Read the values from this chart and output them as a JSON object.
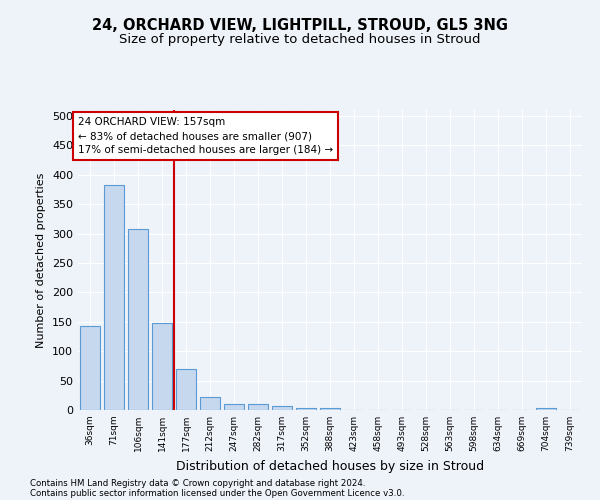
{
  "title1": "24, ORCHARD VIEW, LIGHTPILL, STROUD, GL5 3NG",
  "title2": "Size of property relative to detached houses in Stroud",
  "xlabel": "Distribution of detached houses by size in Stroud",
  "ylabel": "Number of detached properties",
  "categories": [
    "36sqm",
    "71sqm",
    "106sqm",
    "141sqm",
    "177sqm",
    "212sqm",
    "247sqm",
    "282sqm",
    "317sqm",
    "352sqm",
    "388sqm",
    "423sqm",
    "458sqm",
    "493sqm",
    "528sqm",
    "563sqm",
    "598sqm",
    "634sqm",
    "669sqm",
    "704sqm",
    "739sqm"
  ],
  "values": [
    143,
    383,
    307,
    148,
    70,
    22,
    10,
    10,
    7,
    4,
    3,
    0,
    0,
    0,
    0,
    0,
    0,
    0,
    0,
    4,
    0
  ],
  "bar_color": "#c5d8ee",
  "bar_edge_color": "#5b9bd5",
  "red_line_x": 3.5,
  "annotation_line1": "24 ORCHARD VIEW: 157sqm",
  "annotation_line2": "← 83% of detached houses are smaller (907)",
  "annotation_line3": "17% of semi-detached houses are larger (184) →",
  "annotation_box_color": "white",
  "annotation_box_edge_color": "#cc0000",
  "red_line_color": "#cc0000",
  "ylim": [
    0,
    510
  ],
  "yticks": [
    0,
    50,
    100,
    150,
    200,
    250,
    300,
    350,
    400,
    450,
    500
  ],
  "footer1": "Contains HM Land Registry data © Crown copyright and database right 2024.",
  "footer2": "Contains public sector information licensed under the Open Government Licence v3.0.",
  "bg_color": "#eef2f9",
  "grid_color": "#ffffff",
  "title1_fontsize": 10.5,
  "title2_fontsize": 9.5,
  "ylabel_fontsize": 8,
  "xlabel_fontsize": 9
}
